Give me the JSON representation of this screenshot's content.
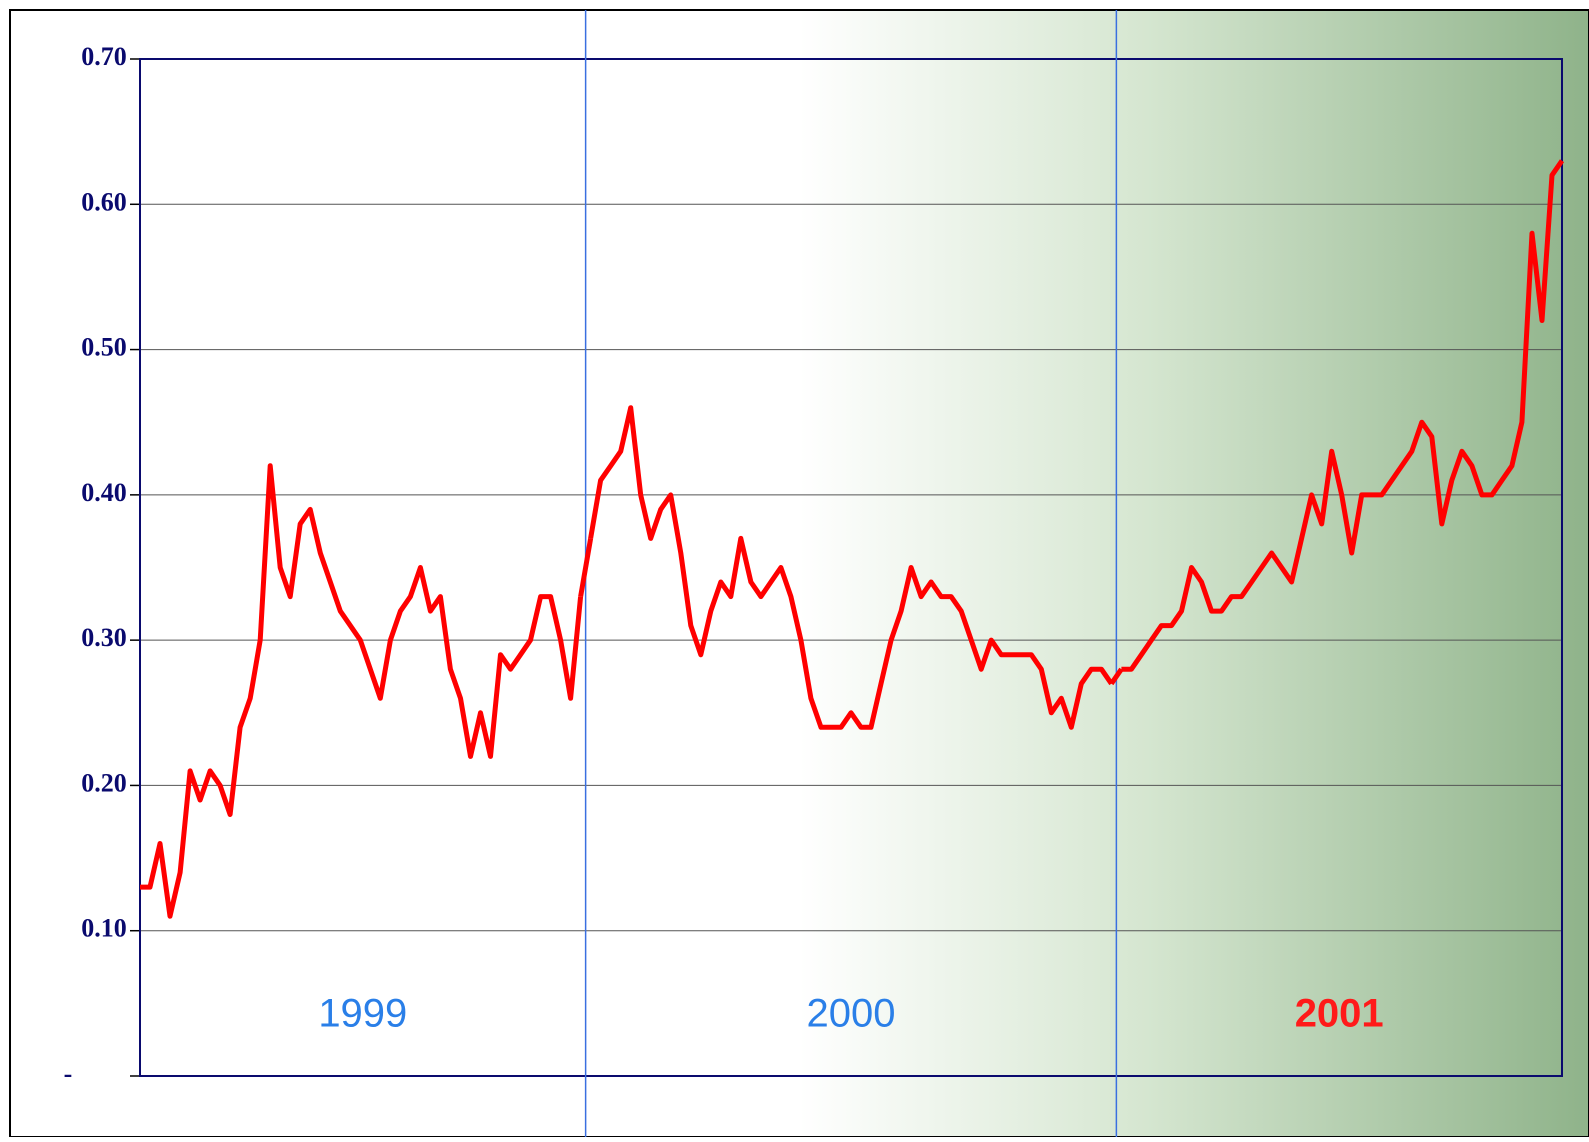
{
  "chart_data": {
    "type": "line",
    "ylim": [
      0,
      0.7
    ],
    "yticks": [
      {
        "value": 0,
        "label": "-"
      },
      {
        "value": 0.1,
        "label": "0.10"
      },
      {
        "value": 0.2,
        "label": "0.20"
      },
      {
        "value": 0.3,
        "label": "0.30"
      },
      {
        "value": 0.4,
        "label": "0.40"
      },
      {
        "value": 0.5,
        "label": "0.50"
      },
      {
        "value": 0.6,
        "label": "0.60"
      },
      {
        "value": 0.7,
        "label": "0.70"
      }
    ],
    "grid": true,
    "series": [
      {
        "name": "1999",
        "color": "#ff0000",
        "label_color": "#2a7fe8",
        "values": [
          0.13,
          0.13,
          0.16,
          0.11,
          0.14,
          0.21,
          0.19,
          0.21,
          0.2,
          0.18,
          0.24,
          0.26,
          0.3,
          0.42,
          0.35,
          0.33,
          0.38,
          0.39,
          0.36,
          0.34,
          0.32,
          0.31,
          0.3,
          0.28,
          0.26,
          0.3,
          0.32,
          0.33,
          0.35,
          0.32,
          0.33,
          0.28,
          0.26,
          0.22,
          0.25,
          0.22,
          0.29,
          0.28,
          0.29,
          0.3,
          0.33,
          0.33,
          0.3,
          0.26,
          0.33
        ]
      },
      {
        "name": "2000",
        "color": "#ff0000",
        "label_color": "#2a7fe8",
        "values": [
          0.37,
          0.41,
          0.42,
          0.43,
          0.46,
          0.4,
          0.37,
          0.39,
          0.4,
          0.36,
          0.31,
          0.29,
          0.32,
          0.34,
          0.33,
          0.37,
          0.34,
          0.33,
          0.34,
          0.35,
          0.33,
          0.3,
          0.26,
          0.24,
          0.24,
          0.24,
          0.25,
          0.24,
          0.24,
          0.27,
          0.3,
          0.32,
          0.35,
          0.33,
          0.34,
          0.33,
          0.33,
          0.32,
          0.3,
          0.28,
          0.3,
          0.29,
          0.29,
          0.29,
          0.29,
          0.28,
          0.25,
          0.26,
          0.24,
          0.27,
          0.28,
          0.28,
          0.27
        ]
      },
      {
        "name": "2001",
        "color": "#ff0000",
        "label_color": "#ff1a1a",
        "values": [
          0.28,
          0.28,
          0.29,
          0.3,
          0.31,
          0.31,
          0.32,
          0.35,
          0.34,
          0.32,
          0.32,
          0.33,
          0.33,
          0.34,
          0.35,
          0.36,
          0.35,
          0.34,
          0.37,
          0.4,
          0.38,
          0.43,
          0.4,
          0.36,
          0.4,
          0.4,
          0.4,
          0.41,
          0.42,
          0.43,
          0.45,
          0.44,
          0.38,
          0.41,
          0.43,
          0.42,
          0.4,
          0.4,
          0.41,
          0.42,
          0.45,
          0.58,
          0.52,
          0.62,
          0.63
        ]
      }
    ]
  }
}
